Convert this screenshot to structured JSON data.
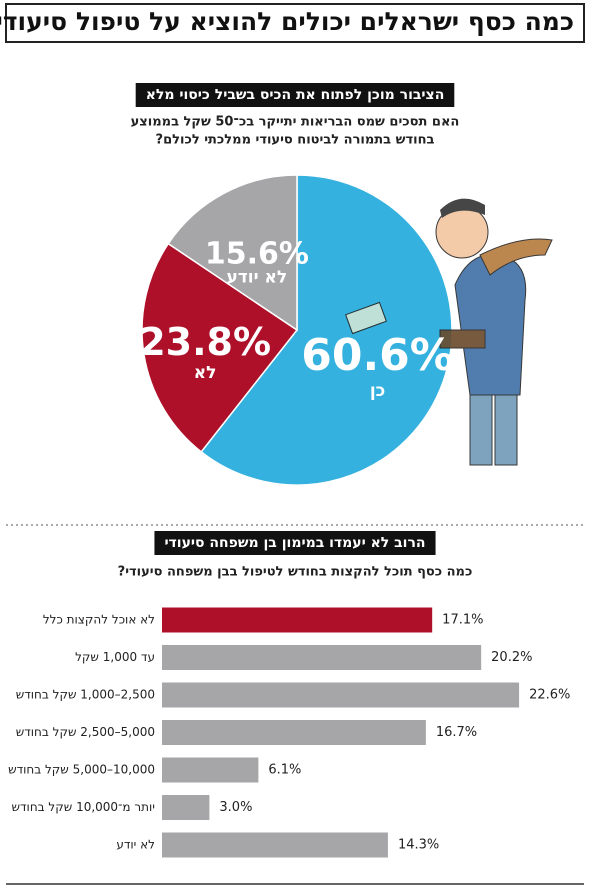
{
  "title": "כמה כסף ישראלים יכולים להוציא על טיפול סיעודי?",
  "chart_data": [
    {
      "type": "pie",
      "title": "הציבור מוכן לפתוח את הכיס בשביל כיסוי מלא",
      "subtitle": [
        "האם תסכים שמס הבריאות יתייקר בכ־50 שקל בממוצע",
        "בחודש בתמורה לביטוח סיעודי ממלכתי לכולם?"
      ],
      "categories": [
        "כן",
        "לא",
        "לא יודע"
      ],
      "values": [
        60.6,
        23.8,
        15.6
      ],
      "value_labels": [
        "60.6%",
        "23.8%",
        "15.6%"
      ],
      "colors": [
        "#34b1de",
        "#ae1029",
        "#a6a6a9"
      ]
    },
    {
      "type": "hbar",
      "title": "הרוב לא יעמדו במימון בן משפחה סיעודי",
      "subtitle": "כמה כסף תוכל להקצות בחודש לטיפול בבן משפחה סיעודי?",
      "categories": [
        "לא אוכל להקצות כלל",
        "עד 1,000 שקל",
        "2,500–1,000 שקל בחודש",
        "5,000–2,500 שקל בחודש",
        "10,000–5,000 שקל בחודש",
        "יותר מ־10,000 שקל בחודש",
        "לא יודע"
      ],
      "values": [
        17.1,
        20.2,
        22.6,
        16.7,
        6.1,
        3.0,
        14.3
      ],
      "value_labels": [
        "17.1%",
        "20.2%",
        "22.6%",
        "16.7%",
        "6.1%",
        "3.0%",
        "14.3%"
      ],
      "colors": [
        "#ae1029",
        "#a6a6a9",
        "#a6a6a9",
        "#a6a6a9",
        "#a6a6a9",
        "#a6a6a9",
        "#a6a6a9"
      ]
    }
  ]
}
